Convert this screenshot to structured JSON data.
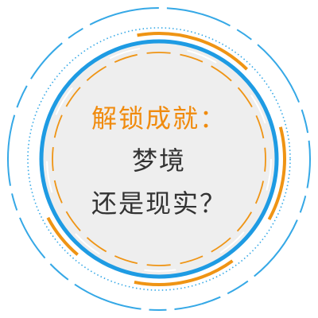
{
  "badge": {
    "title": "解锁成就：",
    "line2": "梦境",
    "line3": "还是现实？"
  },
  "colors": {
    "outer_ring": "#35a8e6",
    "main_ring": "#1e9be3",
    "orange": "#ef9414",
    "inner_fill": "#eeeeee",
    "text_title": "#f08b0e",
    "text_body": "#333333"
  }
}
